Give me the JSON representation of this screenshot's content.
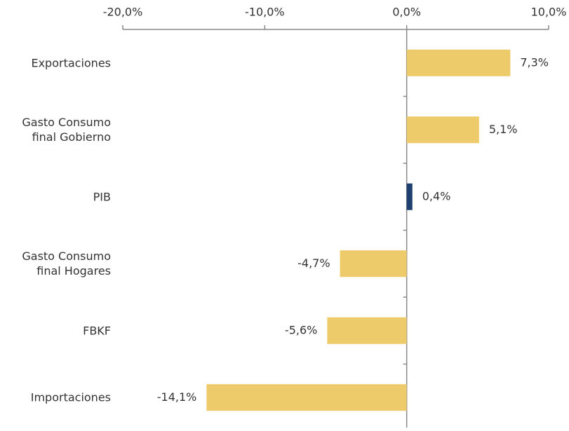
{
  "chart_data": {
    "type": "bar",
    "orientation": "horizontal",
    "categories": [
      "Exportaciones",
      "Gasto Consumo final Gobierno",
      "PIB",
      "Gasto Consumo final Hogares",
      "FBKF",
      "Importaciones"
    ],
    "values": [
      7.3,
      5.1,
      0.4,
      -4.7,
      -5.6,
      -14.1
    ],
    "value_labels": [
      "7,3%",
      "5,1%",
      "0,4%",
      "-4,7%",
      "-5,6%",
      "-14,1%"
    ],
    "colors": [
      "#edcb6a",
      "#edcb6a",
      "#1f3f6e",
      "#edcb6a",
      "#edcb6a",
      "#edcb6a"
    ],
    "xlim": [
      -20,
      10
    ],
    "xticks": [
      {
        "value": -20,
        "label": "-20,0%"
      },
      {
        "value": -10,
        "label": "-10,0%"
      },
      {
        "value": 0,
        "label": "0,0%"
      },
      {
        "value": 10,
        "label": "10,0%"
      }
    ]
  }
}
